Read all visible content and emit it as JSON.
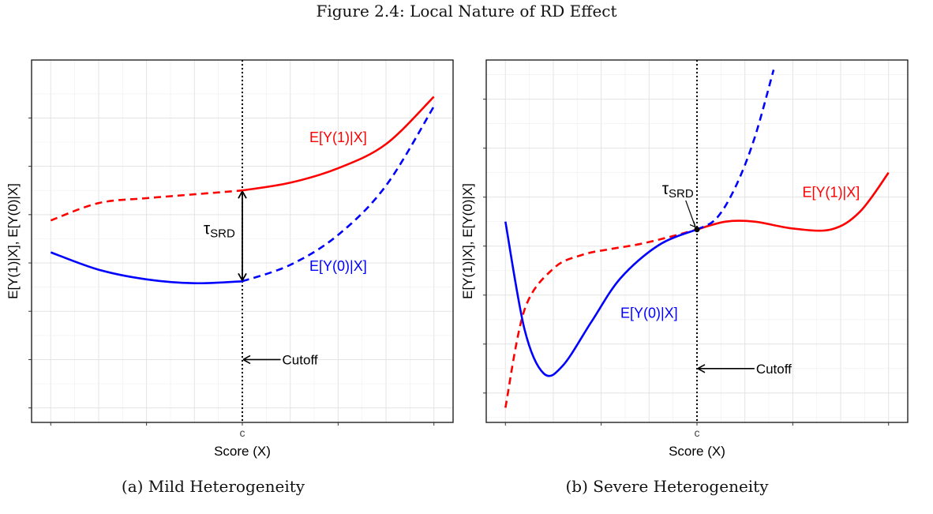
{
  "figure_title": "Figure 2.4: Local Nature of RD Effect",
  "chart_data": [
    {
      "type": "line",
      "caption": "(a) Mild Heterogeneity",
      "xlabel": "Score (X)",
      "ylabel": "E[Y(1)|X], E[Y(0)|X]",
      "x_tick_labels": [
        "",
        "",
        "c",
        "",
        ""
      ],
      "cutoff_label": "c",
      "grid": true,
      "series": [
        {
          "name": "E[Y(1)|X]",
          "color": "#ff0000",
          "segments": [
            {
              "style": "dashed",
              "points": [
                [
                  -1.0,
                  1.44
                ],
                [
                  -0.75,
                  1.62
                ],
                [
                  -0.5,
                  1.67
                ],
                [
                  -0.25,
                  1.71
                ],
                [
                  0.0,
                  1.75
                ]
              ]
            },
            {
              "style": "solid",
              "points": [
                [
                  0.0,
                  1.75
                ],
                [
                  0.25,
                  1.83
                ],
                [
                  0.5,
                  1.98
                ],
                [
                  0.75,
                  2.23
                ],
                [
                  1.0,
                  2.72
                ]
              ]
            }
          ]
        },
        {
          "name": "E[Y(0)|X]",
          "color": "#0000ff",
          "segments": [
            {
              "style": "solid",
              "points": [
                [
                  -1.0,
                  1.11
                ],
                [
                  -0.75,
                  0.93
                ],
                [
                  -0.5,
                  0.83
                ],
                [
                  -0.25,
                  0.79
                ],
                [
                  0.0,
                  0.81
                ]
              ]
            },
            {
              "style": "dashed",
              "points": [
                [
                  0.0,
                  0.81
                ],
                [
                  0.25,
                  0.98
                ],
                [
                  0.5,
                  1.29
                ],
                [
                  0.75,
                  1.8
                ],
                [
                  1.0,
                  2.62
                ]
              ]
            }
          ]
        }
      ],
      "annotations": [
        {
          "text": "E[Y(1)|X]",
          "color": "#ff0000",
          "x": 0.5,
          "y": 2.25
        },
        {
          "text": "E[Y(0)|X]",
          "color": "#0000ff",
          "x": 0.5,
          "y": 0.92
        },
        {
          "text": "τ",
          "subscript": "SRD",
          "color": "#000000",
          "x": -0.12,
          "y": 1.3
        },
        {
          "text": "Cutoff",
          "color": "#000000",
          "x": 0.2,
          "y": 0.0
        }
      ]
    },
    {
      "type": "line",
      "caption": "(b) Severe Heterogeneity",
      "xlabel": "Score (X)",
      "ylabel": "E[Y(1)|X], E[Y(0)|X]",
      "x_tick_labels": [
        "",
        "",
        "c",
        "",
        ""
      ],
      "cutoff_label": "c",
      "grid": true,
      "series": [
        {
          "name": "E[Y(1)|X]",
          "color": "#ff0000",
          "segments": [
            {
              "style": "dashed",
              "points": [
                [
                  -1.0,
                  -0.4
                ],
                [
                  -0.9,
                  0.6
                ],
                [
                  -0.75,
                  1.02
                ],
                [
                  -0.6,
                  1.16
                ],
                [
                  -0.45,
                  1.22
                ],
                [
                  -0.3,
                  1.27
                ],
                [
                  -0.15,
                  1.34
                ],
                [
                  0.0,
                  1.42
                ]
              ]
            },
            {
              "style": "solid",
              "points": [
                [
                  0.0,
                  1.42
                ],
                [
                  0.15,
                  1.5
                ],
                [
                  0.3,
                  1.5
                ],
                [
                  0.5,
                  1.43
                ],
                [
                  0.7,
                  1.42
                ],
                [
                  0.85,
                  1.6
                ],
                [
                  1.0,
                  2.0
                ]
              ]
            }
          ]
        },
        {
          "name": "E[Y(0)|X]",
          "color": "#0000ff",
          "segments": [
            {
              "style": "solid",
              "points": [
                [
                  -1.0,
                  1.5
                ],
                [
                  -0.9,
                  0.4
                ],
                [
                  -0.8,
                  -0.05
                ],
                [
                  -0.7,
                  0.03
                ],
                [
                  -0.55,
                  0.48
                ],
                [
                  -0.4,
                  0.92
                ],
                [
                  -0.2,
                  1.26
                ],
                [
                  0.0,
                  1.42
                ]
              ]
            },
            {
              "style": "dashed",
              "points": [
                [
                  0.0,
                  1.42
                ],
                [
                  0.1,
                  1.53
                ],
                [
                  0.2,
                  1.85
                ],
                [
                  0.3,
                  2.35
                ],
                [
                  0.4,
                  3.05
                ]
              ]
            }
          ]
        }
      ],
      "annotations": [
        {
          "text": "E[Y(1)|X]",
          "color": "#ff0000",
          "x": 0.7,
          "y": 1.75
        },
        {
          "text": "E[Y(0)|X]",
          "color": "#0000ff",
          "x": -0.25,
          "y": 0.52
        },
        {
          "text": "τ",
          "subscript": "SRD",
          "color": "#000000",
          "x": -0.1,
          "y": 1.78
        },
        {
          "text": "Cutoff",
          "color": "#000000",
          "x": 0.3,
          "y": 0.0
        }
      ]
    }
  ]
}
